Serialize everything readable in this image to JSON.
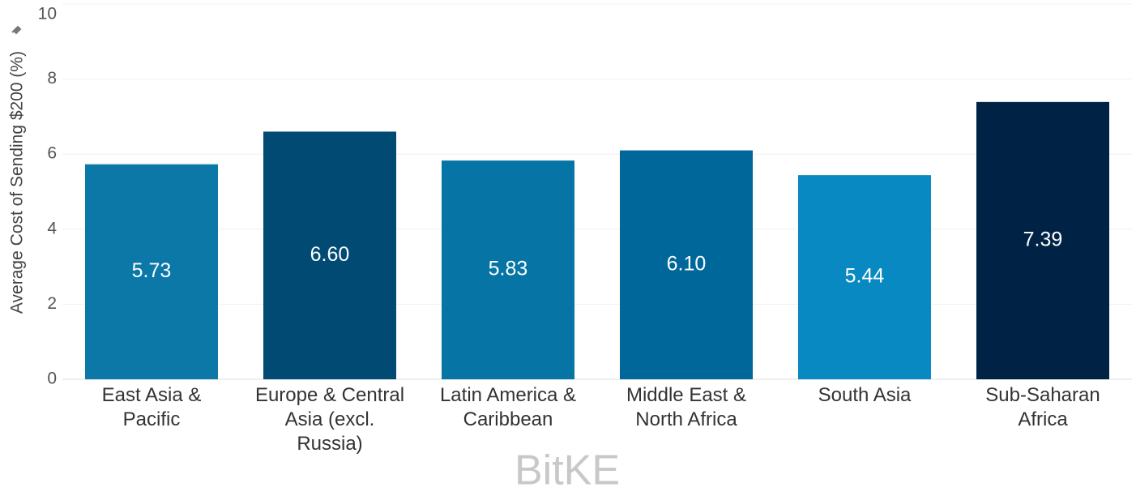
{
  "chart_data": {
    "type": "bar",
    "y_label": "Average Cost of Sending $200 (%)",
    "watermark": "BitKE",
    "categories": [
      "East Asia & Pacific",
      "Europe & Central Asia (excl. Russia)",
      "Latin America & Caribbean",
      "Middle East & North Africa",
      "South Asia",
      "Sub-Saharan Africa"
    ],
    "values": [
      5.73,
      6.6,
      5.83,
      6.1,
      5.44,
      7.39
    ],
    "value_labels": [
      "5.73",
      "6.60",
      "5.83",
      "6.10",
      "5.44",
      "7.39"
    ],
    "colors": [
      "#0b78a8",
      "#004a74",
      "#0674a5",
      "#00679a",
      "#0889c1",
      "#002345"
    ],
    "ylim": [
      0,
      10
    ],
    "yticks": [
      0,
      2,
      4,
      6,
      8,
      10
    ],
    "grid": true
  }
}
